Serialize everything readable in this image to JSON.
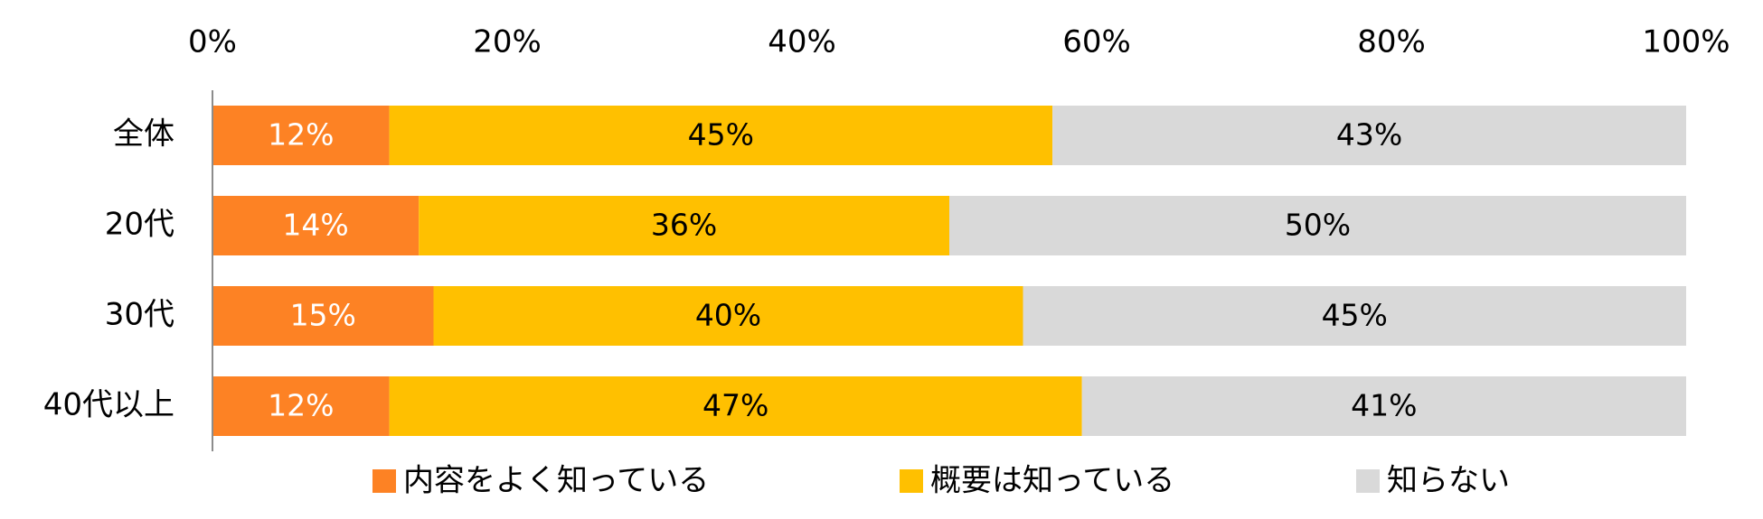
{
  "chart_data": {
    "type": "bar",
    "orientation": "horizontal",
    "stacked": true,
    "categories": [
      "全体",
      "20代",
      "30代",
      "40代以上"
    ],
    "series": [
      {
        "name": "内容をよく知っている",
        "color": "#FD8224",
        "label_color": "#FFFFFF",
        "values": [
          12,
          14,
          15,
          12
        ],
        "labels": [
          "12%",
          "14%",
          "15%",
          "12%"
        ]
      },
      {
        "name": "概要は知っている",
        "color": "#FFC000",
        "label_color": "#000000",
        "values": [
          45,
          36,
          40,
          47
        ],
        "labels": [
          "45%",
          "36%",
          "40%",
          "47%"
        ]
      },
      {
        "name": "知らない",
        "color": "#D9D9D9",
        "label_color": "#000000",
        "values": [
          43,
          50,
          45,
          41
        ],
        "labels": [
          "43%",
          "50%",
          "45%",
          "41%"
        ]
      }
    ],
    "xlim": [
      0,
      100
    ],
    "xticks": [
      0,
      20,
      40,
      60,
      80,
      100
    ],
    "xtick_labels": [
      "0%",
      "20%",
      "40%",
      "60%",
      "80%",
      "100%"
    ],
    "xaxis_position": "top",
    "grid": false,
    "legend_position": "bottom",
    "title": "",
    "xlabel": "",
    "ylabel": ""
  }
}
